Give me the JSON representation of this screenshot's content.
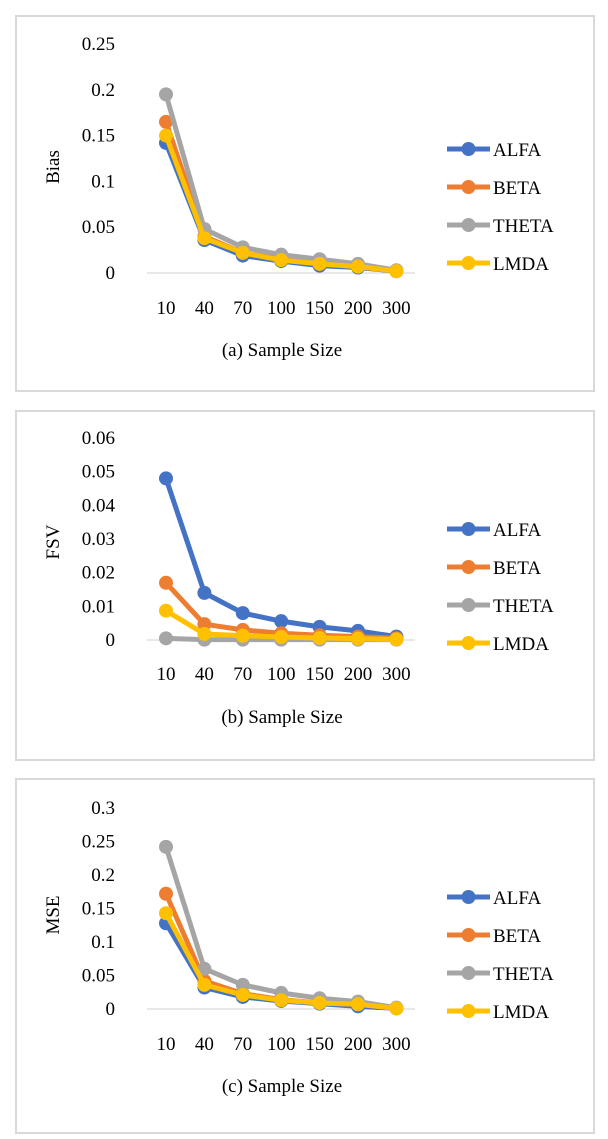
{
  "series_colors": {
    "ALFA": "#4472C4",
    "BETA": "#ED7D31",
    "THETA": "#A5A5A5",
    "LMDA": "#FFC000"
  },
  "chart_data": [
    {
      "type": "line",
      "title": "",
      "xlabel": "(a) Sample Size",
      "ylabel": "Bias",
      "categories": [
        "10",
        "40",
        "70",
        "100",
        "150",
        "200",
        "300"
      ],
      "yticks": [
        "0",
        "0.05",
        "0.1",
        "0.15",
        "0.2",
        "0.25"
      ],
      "ylim": [
        0,
        0.25
      ],
      "grid": false,
      "legend": "right",
      "series": [
        {
          "name": "ALFA",
          "values": [
            0.142,
            0.036,
            0.019,
            0.013,
            0.008,
            0.006,
            0.002
          ]
        },
        {
          "name": "BETA",
          "values": [
            0.165,
            0.04,
            0.022,
            0.015,
            0.01,
            0.007,
            0.002
          ]
        },
        {
          "name": "THETA",
          "values": [
            0.195,
            0.048,
            0.028,
            0.02,
            0.015,
            0.01,
            0.003
          ]
        },
        {
          "name": "LMDA",
          "values": [
            0.15,
            0.038,
            0.022,
            0.014,
            0.01,
            0.007,
            0.002
          ]
        }
      ]
    },
    {
      "type": "line",
      "title": "",
      "xlabel": "(b) Sample Size",
      "ylabel": "FSV",
      "categories": [
        "10",
        "40",
        "70",
        "100",
        "150",
        "200",
        "300"
      ],
      "yticks": [
        "0",
        "0.01",
        "0.02",
        "0.03",
        "0.04",
        "0.05",
        "0.06"
      ],
      "ylim": [
        0,
        0.06
      ],
      "grid": false,
      "legend": "right",
      "series": [
        {
          "name": "ALFA",
          "values": [
            0.048,
            0.014,
            0.008,
            0.0056,
            0.0039,
            0.0027,
            0.001
          ]
        },
        {
          "name": "BETA",
          "values": [
            0.017,
            0.0047,
            0.003,
            0.002,
            0.0014,
            0.001,
            0.0005
          ]
        },
        {
          "name": "THETA",
          "values": [
            0.0005,
            0.0001,
            0.0001,
            0.0001,
            0.0001,
            0.0001,
            0.0001
          ]
        },
        {
          "name": "LMDA",
          "values": [
            0.0087,
            0.0018,
            0.0013,
            0.0009,
            0.0006,
            0.0004,
            0.0002
          ]
        }
      ]
    },
    {
      "type": "line",
      "title": "",
      "xlabel": "(c) Sample Size",
      "ylabel": "MSE",
      "categories": [
        "10",
        "40",
        "70",
        "100",
        "150",
        "200",
        "300"
      ],
      "yticks": [
        "0",
        "0.05",
        "0.1",
        "0.15",
        "0.2",
        "0.25",
        "0.3"
      ],
      "ylim": [
        0,
        0.3
      ],
      "grid": false,
      "legend": "right",
      "series": [
        {
          "name": "ALFA",
          "values": [
            0.128,
            0.032,
            0.018,
            0.012,
            0.008,
            0.004,
            0.001
          ]
        },
        {
          "name": "BETA",
          "values": [
            0.172,
            0.042,
            0.023,
            0.014,
            0.009,
            0.007,
            0.001
          ]
        },
        {
          "name": "THETA",
          "values": [
            0.242,
            0.06,
            0.036,
            0.024,
            0.016,
            0.011,
            0.002
          ]
        },
        {
          "name": "LMDA",
          "values": [
            0.143,
            0.036,
            0.021,
            0.013,
            0.009,
            0.007,
            0.001
          ]
        }
      ]
    }
  ]
}
